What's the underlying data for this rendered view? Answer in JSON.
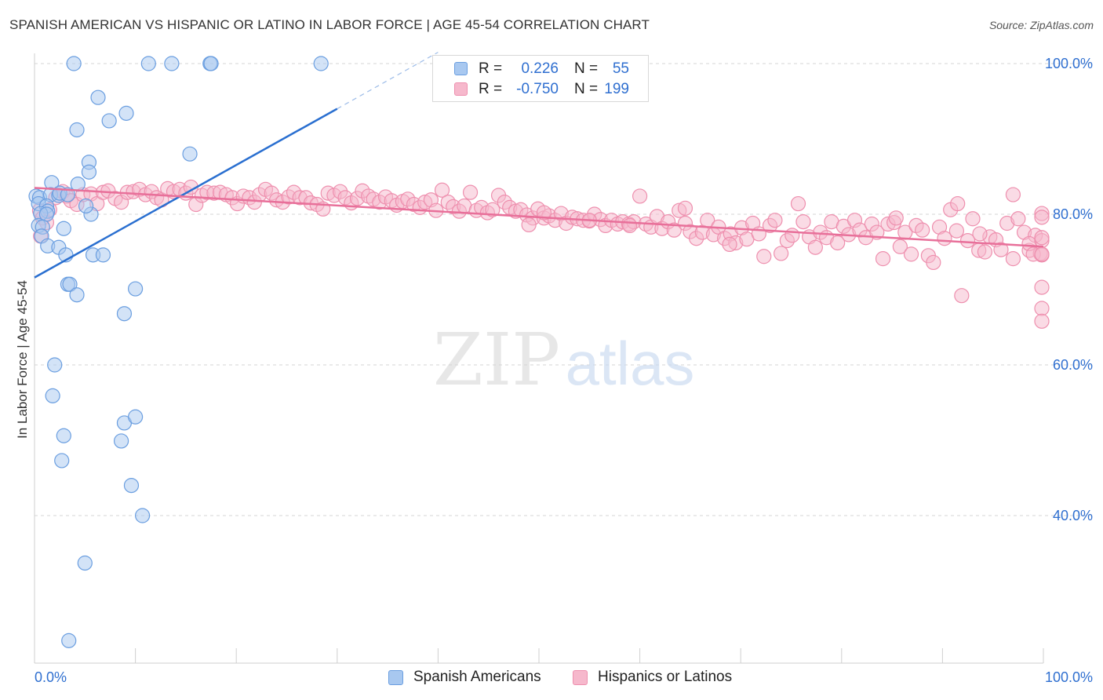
{
  "title": "SPANISH AMERICAN VS HISPANIC OR LATINO IN LABOR FORCE | AGE 45-54 CORRELATION CHART",
  "source": "Source: ZipAtlas.com",
  "watermark": {
    "zip": "ZIP",
    "atlas": "atlas"
  },
  "legend": {
    "rows": [
      {
        "r_label": "R =",
        "r_value": "0.226",
        "n_label": "N =",
        "n_value": "55"
      },
      {
        "r_label": "R =",
        "r_value": "-0.750",
        "n_label": "N =",
        "n_value": "199"
      }
    ]
  },
  "bottom_legend": {
    "series1": "Spanish Americans",
    "series2": "Hispanics or Latinos"
  },
  "colors": {
    "blue_fill": "#a8c8f0",
    "blue_stroke": "#6a9ee0",
    "blue_line": "#2a6fd0",
    "pink_fill": "#f6b8cc",
    "pink_stroke": "#ee8fae",
    "pink_line": "#e8709a",
    "axis_label": "#2f6fd0",
    "grid": "#d6d6d6"
  },
  "chart_data": {
    "type": "scatter",
    "title": "SPANISH AMERICAN VS HISPANIC OR LATINO IN LABOR FORCE | AGE 45-54 CORRELATION CHART",
    "xlabel": "",
    "ylabel": "In Labor Force | Age 45-54",
    "xlim": [
      0,
      100
    ],
    "ylim": [
      20,
      102
    ],
    "x_tick_labels": [
      "0.0%",
      "100.0%"
    ],
    "y_ticks": [
      40,
      60,
      80,
      100
    ],
    "y_tick_labels": [
      "40.0%",
      "60.0%",
      "80.0%",
      "100.0%"
    ],
    "grid": true,
    "legend_position": "top-center",
    "series": [
      {
        "name": "Spanish Americans",
        "R": 0.226,
        "N": 55,
        "trend": {
          "x": [
            0,
            30
          ],
          "y": [
            71.6,
            94.0
          ],
          "dashed_to": [
            40,
            101.5
          ]
        },
        "points": [
          [
            3.9,
            100
          ],
          [
            11.3,
            100
          ],
          [
            13.6,
            100
          ],
          [
            17.4,
            100
          ],
          [
            17.5,
            100
          ],
          [
            28.4,
            100
          ],
          [
            6.3,
            95.5
          ],
          [
            4.2,
            91.2
          ],
          [
            7.4,
            92.4
          ],
          [
            9.1,
            93.4
          ],
          [
            15.4,
            88.0
          ],
          [
            5.4,
            86.9
          ],
          [
            5.4,
            85.6
          ],
          [
            1.7,
            84.2
          ],
          [
            4.3,
            84.0
          ],
          [
            0.1,
            82.4
          ],
          [
            0.5,
            82.2
          ],
          [
            1.6,
            82.6
          ],
          [
            2.4,
            82.5
          ],
          [
            2.5,
            82.8
          ],
          [
            3.3,
            82.6
          ],
          [
            0.4,
            81.4
          ],
          [
            1.2,
            81.1
          ],
          [
            1.3,
            80.4
          ],
          [
            0.6,
            80.1
          ],
          [
            1.2,
            80.0
          ],
          [
            5.6,
            80.0
          ],
          [
            5.1,
            81.1
          ],
          [
            0.4,
            78.5
          ],
          [
            0.8,
            78.3
          ],
          [
            2.9,
            78.1
          ],
          [
            0.7,
            77.1
          ],
          [
            1.3,
            75.8
          ],
          [
            2.4,
            75.6
          ],
          [
            3.1,
            74.6
          ],
          [
            5.8,
            74.6
          ],
          [
            6.8,
            74.6
          ],
          [
            3.3,
            70.7
          ],
          [
            3.5,
            70.7
          ],
          [
            4.2,
            69.3
          ],
          [
            10.0,
            70.1
          ],
          [
            8.9,
            66.8
          ],
          [
            2.0,
            60.0
          ],
          [
            1.8,
            55.9
          ],
          [
            2.9,
            50.6
          ],
          [
            2.7,
            47.3
          ],
          [
            8.9,
            52.3
          ],
          [
            10.0,
            53.1
          ],
          [
            8.6,
            49.9
          ],
          [
            9.6,
            44.0
          ],
          [
            10.7,
            40.0
          ],
          [
            5.0,
            33.7
          ],
          [
            3.4,
            23.4
          ]
        ]
      },
      {
        "name": "Hispanics or Latinos",
        "R": -0.75,
        "N": 199,
        "trend": {
          "x": [
            0,
            100
          ],
          "y": [
            83.5,
            75.7
          ]
        },
        "points": [
          [
            0.5,
            80.5
          ],
          [
            0.8,
            79.5
          ],
          [
            1.2,
            78.9
          ],
          [
            0.6,
            77.1
          ],
          [
            1.5,
            80.6
          ],
          [
            2.1,
            82.2
          ],
          [
            2.8,
            83.0
          ],
          [
            3.2,
            82.4
          ],
          [
            3.6,
            81.8
          ],
          [
            4.2,
            81.3
          ],
          [
            4.8,
            82.6
          ],
          [
            5.6,
            82.7
          ],
          [
            6.2,
            81.4
          ],
          [
            6.8,
            82.9
          ],
          [
            7.3,
            83.1
          ],
          [
            8.0,
            82.1
          ],
          [
            8.6,
            81.6
          ],
          [
            9.2,
            82.9
          ],
          [
            9.8,
            83.0
          ],
          [
            10.4,
            83.3
          ],
          [
            11.0,
            82.6
          ],
          [
            11.6,
            83.0
          ],
          [
            12.1,
            82.2
          ],
          [
            12.6,
            81.9
          ],
          [
            13.2,
            83.4
          ],
          [
            13.8,
            83.0
          ],
          [
            14.4,
            83.3
          ],
          [
            15.0,
            82.8
          ],
          [
            15.5,
            83.6
          ],
          [
            16.0,
            81.3
          ],
          [
            16.6,
            82.5
          ],
          [
            17.1,
            82.9
          ],
          [
            17.8,
            82.8
          ],
          [
            18.4,
            82.9
          ],
          [
            19.0,
            82.6
          ],
          [
            19.6,
            82.2
          ],
          [
            20.1,
            81.4
          ],
          [
            20.7,
            82.4
          ],
          [
            21.3,
            82.2
          ],
          [
            21.8,
            81.6
          ],
          [
            22.3,
            82.6
          ],
          [
            22.9,
            83.3
          ],
          [
            23.5,
            82.8
          ],
          [
            24.0,
            81.9
          ],
          [
            24.6,
            81.6
          ],
          [
            25.2,
            82.3
          ],
          [
            25.7,
            82.9
          ],
          [
            26.3,
            82.2
          ],
          [
            26.9,
            82.2
          ],
          [
            27.4,
            81.5
          ],
          [
            28.0,
            81.3
          ],
          [
            28.6,
            80.7
          ],
          [
            29.1,
            82.8
          ],
          [
            29.7,
            82.5
          ],
          [
            30.3,
            83.0
          ],
          [
            30.8,
            82.2
          ],
          [
            31.4,
            81.5
          ],
          [
            32.0,
            82.1
          ],
          [
            32.5,
            83.1
          ],
          [
            33.1,
            82.4
          ],
          [
            33.6,
            82.0
          ],
          [
            34.2,
            81.6
          ],
          [
            34.8,
            82.3
          ],
          [
            35.4,
            81.8
          ],
          [
            35.9,
            81.2
          ],
          [
            36.5,
            81.7
          ],
          [
            37.0,
            82.0
          ],
          [
            37.6,
            81.3
          ],
          [
            38.2,
            80.9
          ],
          [
            38.7,
            81.6
          ],
          [
            39.3,
            81.9
          ],
          [
            39.8,
            80.5
          ],
          [
            40.4,
            83.2
          ],
          [
            41.0,
            81.6
          ],
          [
            41.5,
            81.0
          ],
          [
            42.1,
            80.4
          ],
          [
            42.6,
            81.1
          ],
          [
            43.2,
            82.9
          ],
          [
            43.8,
            80.5
          ],
          [
            44.3,
            80.9
          ],
          [
            44.9,
            80.2
          ],
          [
            45.4,
            80.6
          ],
          [
            46.0,
            82.5
          ],
          [
            46.6,
            81.6
          ],
          [
            47.1,
            80.9
          ],
          [
            47.7,
            80.4
          ],
          [
            48.2,
            80.6
          ],
          [
            48.8,
            79.9
          ],
          [
            49.4,
            79.5
          ],
          [
            49.9,
            80.7
          ],
          [
            50.5,
            79.5
          ],
          [
            51.0,
            79.8
          ],
          [
            51.6,
            79.2
          ],
          [
            52.2,
            80.1
          ],
          [
            52.7,
            78.8
          ],
          [
            53.3,
            79.6
          ],
          [
            53.8,
            79.4
          ],
          [
            54.4,
            79.2
          ],
          [
            55.0,
            79.1
          ],
          [
            55.5,
            80.0
          ],
          [
            56.1,
            79.3
          ],
          [
            56.6,
            78.5
          ],
          [
            57.2,
            79.2
          ],
          [
            57.8,
            78.7
          ],
          [
            58.3,
            79.0
          ],
          [
            58.9,
            78.7
          ],
          [
            59.4,
            79.0
          ],
          [
            60.0,
            82.4
          ],
          [
            60.6,
            78.7
          ],
          [
            61.1,
            78.3
          ],
          [
            61.7,
            79.7
          ],
          [
            62.2,
            78.1
          ],
          [
            62.8,
            79.0
          ],
          [
            63.4,
            77.9
          ],
          [
            63.9,
            80.5
          ],
          [
            64.5,
            78.8
          ],
          [
            65.0,
            77.7
          ],
          [
            65.6,
            76.8
          ],
          [
            66.2,
            77.6
          ],
          [
            66.7,
            79.2
          ],
          [
            67.3,
            77.3
          ],
          [
            67.8,
            78.3
          ],
          [
            68.4,
            76.8
          ],
          [
            69.0,
            77.4
          ],
          [
            69.5,
            76.2
          ],
          [
            70.1,
            78.2
          ],
          [
            70.6,
            76.7
          ],
          [
            71.2,
            78.8
          ],
          [
            71.8,
            77.4
          ],
          [
            72.3,
            74.4
          ],
          [
            72.9,
            78.5
          ],
          [
            73.4,
            79.2
          ],
          [
            74.0,
            74.8
          ],
          [
            74.6,
            76.5
          ],
          [
            75.1,
            77.2
          ],
          [
            75.7,
            81.4
          ],
          [
            76.2,
            79.0
          ],
          [
            76.8,
            77.0
          ],
          [
            77.4,
            75.6
          ],
          [
            77.9,
            77.6
          ],
          [
            78.5,
            76.9
          ],
          [
            79.0,
            79.0
          ],
          [
            79.6,
            76.2
          ],
          [
            80.2,
            78.4
          ],
          [
            80.7,
            77.3
          ],
          [
            81.3,
            79.2
          ],
          [
            81.8,
            77.9
          ],
          [
            82.4,
            76.9
          ],
          [
            83.0,
            78.7
          ],
          [
            83.5,
            77.6
          ],
          [
            84.1,
            74.1
          ],
          [
            84.6,
            78.7
          ],
          [
            85.2,
            78.9
          ],
          [
            85.8,
            75.7
          ],
          [
            86.3,
            77.6
          ],
          [
            86.9,
            74.7
          ],
          [
            87.4,
            78.5
          ],
          [
            88.0,
            77.9
          ],
          [
            88.6,
            74.5
          ],
          [
            89.1,
            73.6
          ],
          [
            89.7,
            78.3
          ],
          [
            90.2,
            76.8
          ],
          [
            90.8,
            80.6
          ],
          [
            91.4,
            77.8
          ],
          [
            91.9,
            69.2
          ],
          [
            92.5,
            76.5
          ],
          [
            93.0,
            79.4
          ],
          [
            93.6,
            75.2
          ],
          [
            94.2,
            75.0
          ],
          [
            94.7,
            77.0
          ],
          [
            95.3,
            76.6
          ],
          [
            95.8,
            75.3
          ],
          [
            96.4,
            78.8
          ],
          [
            97.0,
            74.1
          ],
          [
            97.5,
            79.4
          ],
          [
            98.1,
            77.6
          ],
          [
            98.6,
            75.2
          ],
          [
            99.2,
            77.2
          ],
          [
            99.7,
            74.8
          ],
          [
            100.3,
            80.1
          ],
          [
            97.0,
            82.6
          ],
          [
            98.6,
            76.1
          ],
          [
            99.0,
            74.7
          ],
          [
            100.2,
            79.6
          ],
          [
            101.0,
            76.5
          ],
          [
            101.7,
            74.6
          ],
          [
            102.4,
            76.9
          ],
          [
            102.8,
            74.7
          ],
          [
            103.1,
            70.3
          ],
          [
            102.6,
            67.5
          ],
          [
            103.7,
            65.8
          ],
          [
            93.7,
            77.4
          ],
          [
            91.5,
            81.4
          ],
          [
            85.4,
            79.5
          ],
          [
            68.9,
            76.0
          ],
          [
            64.5,
            80.8
          ],
          [
            59.0,
            78.5
          ],
          [
            55.0,
            79.2
          ],
          [
            50.5,
            80.2
          ],
          [
            49.0,
            78.6
          ]
        ]
      }
    ]
  }
}
